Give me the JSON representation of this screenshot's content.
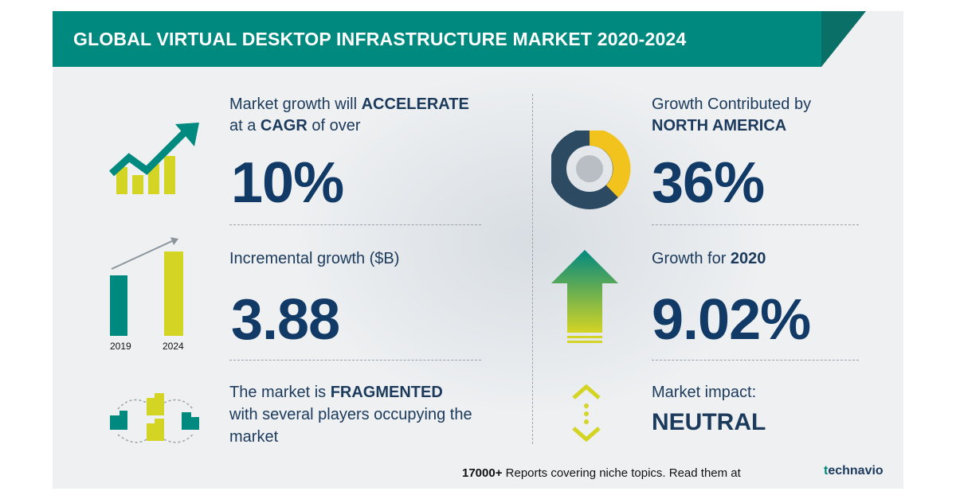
{
  "title": "GLOBAL VIRTUAL DESKTOP INFRASTRUCTURE MARKET 2020-2024",
  "left": {
    "growth": {
      "line1_prefix": "Market growth will ",
      "line1_emph": "ACCELERATE",
      "line2_prefix": "at a ",
      "line2_emph": "CAGR",
      "line2_suffix": " of over",
      "value": "10%"
    },
    "incremental": {
      "label": "Incremental growth ($B)",
      "value": "3.88",
      "bar_labels": [
        "2019",
        "2024"
      ]
    },
    "fragmented": {
      "line1_prefix": "The market is ",
      "line1_emph": "FRAGMENTED",
      "line2": "with several players occupying the",
      "line3": "market"
    }
  },
  "right": {
    "region": {
      "line1": "Growth Contributed by",
      "line2": "NORTH AMERICA",
      "value": "36%"
    },
    "yoy": {
      "label_prefix": "Growth for ",
      "label_emph": "2020",
      "value": "9.02%"
    },
    "impact": {
      "label": "Market impact:",
      "value": "NEUTRAL"
    }
  },
  "footer": {
    "count": "17000+",
    "text": " Reports covering niche topics. Read them at",
    "logo_mark": "t",
    "logo_text": "echnavio"
  },
  "colors": {
    "teal": "#00897e",
    "yellow": "#d4d424",
    "navy": "#113a66",
    "donut_dark": "#2d4a63",
    "donut_yellow": "#f2c31c"
  }
}
